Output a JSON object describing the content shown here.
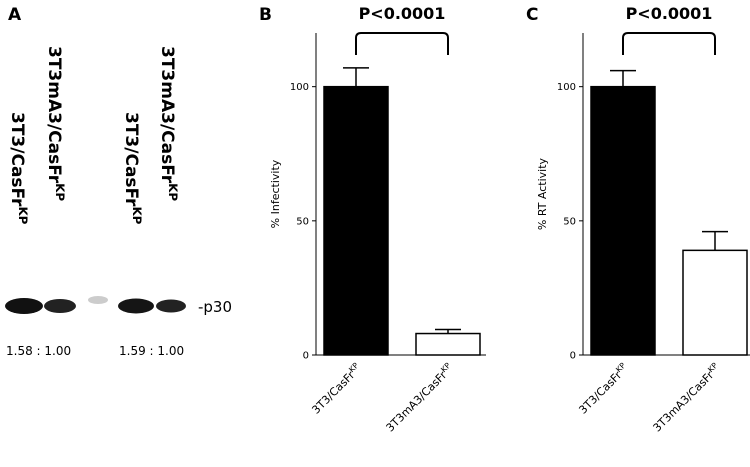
{
  "panel_a": {
    "label": "A",
    "lanes": [
      {
        "name": "3T3/CasFr",
        "sup": "KP"
      },
      {
        "name": "3T3mA3/CasFr",
        "sup": "KP"
      },
      {
        "name": "3T3/CasFr",
        "sup": "KP"
      },
      {
        "name": "3T3mA3/CasFr",
        "sup": "KP"
      }
    ],
    "band_label": "-p30",
    "ratios": [
      "1.58 : 1.00",
      "1.59 : 1.00"
    ]
  },
  "chart_data": [
    {
      "type": "bar",
      "panel": "B",
      "annotation": "P<0.0001",
      "y_label": "% Infectivity",
      "categories": [
        "3T3/CasFr",
        "3T3mA3/CasFr"
      ],
      "category_sup": [
        "KP",
        "KP"
      ],
      "values": [
        100,
        8
      ],
      "errors": [
        7,
        1.5
      ],
      "colors": [
        "#000000",
        "#ffffff"
      ],
      "ylim": [
        0,
        120
      ],
      "yticks": [
        0,
        50,
        100
      ]
    },
    {
      "type": "bar",
      "panel": "C",
      "annotation": "P<0.0001",
      "y_label": "% RT Activity",
      "categories": [
        "3T3/CasFr",
        "3T3mA3/CasFr"
      ],
      "category_sup": [
        "KP",
        "KP"
      ],
      "values": [
        100,
        39
      ],
      "errors": [
        6,
        7
      ],
      "colors": [
        "#000000",
        "#ffffff"
      ],
      "ylim": [
        0,
        120
      ],
      "yticks": [
        0,
        50,
        100
      ]
    }
  ]
}
